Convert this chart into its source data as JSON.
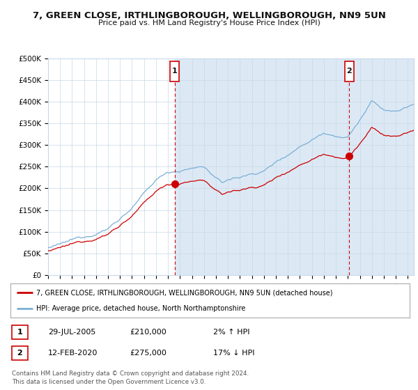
{
  "title1": "7, GREEN CLOSE, IRTHLINGBOROUGH, WELLINGBOROUGH, NN9 5UN",
  "title2": "Price paid vs. HM Land Registry's House Price Index (HPI)",
  "background_color": "#dce9f5",
  "outer_bg": "#ffffff",
  "hpi_color": "#7bafd4",
  "price_color": "#cc0000",
  "marker_color": "#cc0000",
  "vline_color": "#cc0000",
  "grid_color": "#c8d8e8",
  "ylim": [
    0,
    500000
  ],
  "yticks": [
    0,
    50000,
    100000,
    150000,
    200000,
    250000,
    300000,
    350000,
    400000,
    450000,
    500000
  ],
  "sale1_date": 2005.57,
  "sale1_price": 210000,
  "sale2_date": 2020.12,
  "sale2_price": 275000,
  "legend_line1": "7, GREEN CLOSE, IRTHLINGBOROUGH, WELLINGBOROUGH, NN9 5UN (detached house)",
  "legend_line2": "HPI: Average price, detached house, North Northamptonshire",
  "note1_date": "29-JUL-2005",
  "note1_price": "£210,000",
  "note1_hpi": "2% ↑ HPI",
  "note2_date": "12-FEB-2020",
  "note2_price": "£275,000",
  "note2_hpi": "17% ↓ HPI",
  "footer": "Contains HM Land Registry data © Crown copyright and database right 2024.\nThis data is licensed under the Open Government Licence v3.0.",
  "xmin": 1995.0,
  "xmax": 2025.5
}
